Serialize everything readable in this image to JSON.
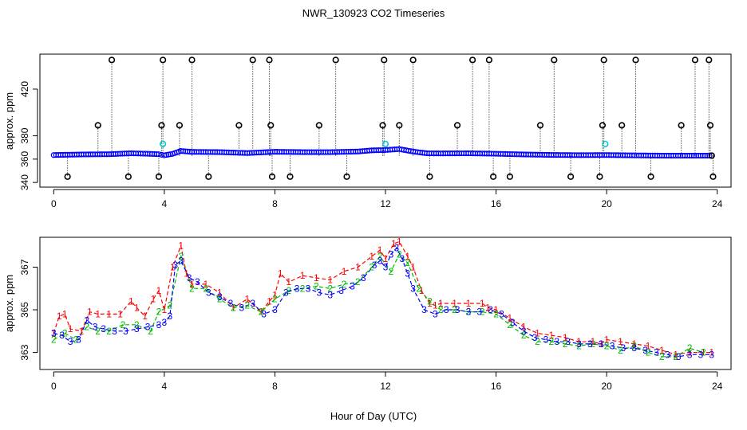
{
  "title": "NWR_130923  CO2 Timeseries",
  "xlabel": "Hour of Day (UTC)",
  "chart_data": [
    {
      "type": "scatter",
      "ylabel": "approx. ppm",
      "xlim": [
        -0.5,
        24.5
      ],
      "ylim": [
        336,
        450
      ],
      "xticks": [
        "0",
        "4",
        "8",
        "12",
        "16",
        "20",
        "24"
      ],
      "yticks": [
        "340",
        "360",
        "380",
        "420"
      ],
      "yticks_values": [
        340,
        360,
        380,
        420
      ],
      "series": [
        {
          "marker": "o",
          "color": "#0000ff",
          "x": [
            0,
            1,
            2,
            2.8,
            3.4,
            3.8,
            4.0,
            4.3,
            4.6,
            5.0,
            6.0,
            7.0,
            8.0,
            9.0,
            10.0,
            11.0,
            11.5,
            12.0,
            12.5,
            13.0,
            13.5,
            14.0,
            15.0,
            16.0,
            17.0,
            18.0,
            19.0,
            20.0,
            21.0,
            22.0,
            23.0,
            23.8
          ],
          "y": [
            363.5,
            364,
            364.2,
            365,
            364.6,
            364.2,
            363.3,
            364.5,
            367,
            366.2,
            366,
            365.2,
            366.3,
            366,
            366,
            366.5,
            367.5,
            367.8,
            368.6,
            366.5,
            365,
            364.9,
            365,
            364.6,
            364,
            363.6,
            363.4,
            363.5,
            363.2,
            363,
            363,
            363
          ]
        },
        {
          "marker": "o",
          "color": "#00cccc",
          "x": [
            3.95,
            12.0,
            19.95
          ],
          "y": [
            373,
            373,
            373
          ]
        },
        {
          "marker": "o",
          "color": "#000000",
          "x": [
            0.5,
            1.6,
            2.1,
            2.7,
            3.8,
            3.9,
            3.95,
            4.55,
            5.0,
            5.6,
            6.7,
            7.2,
            7.8,
            7.85,
            7.9,
            8.55,
            9.6,
            10.2,
            10.6,
            11.9,
            11.95,
            12.5,
            13.0,
            13.6,
            14.6,
            15.15,
            15.75,
            15.9,
            16.5,
            17.6,
            18.1,
            18.7,
            19.75,
            19.85,
            19.9,
            20.55,
            21.05,
            21.6,
            22.7,
            23.2,
            23.7,
            23.75,
            23.8,
            23.85
          ],
          "y": [
            345,
            389,
            445,
            345,
            345,
            389,
            445,
            389,
            445,
            345,
            389,
            445,
            445,
            389,
            345,
            345,
            389,
            445,
            345,
            389,
            445,
            389,
            445,
            345,
            389,
            445,
            445,
            345,
            345,
            389,
            445,
            345,
            345,
            389,
            445,
            389,
            445,
            345,
            389,
            445,
            445,
            389,
            363,
            345
          ]
        }
      ]
    },
    {
      "type": "line",
      "ylabel": "approx. ppm",
      "xlim": [
        -0.5,
        24.5
      ],
      "ylim": [
        362.2,
        368.4
      ],
      "xticks": [
        "0",
        "4",
        "8",
        "12",
        "16",
        "20",
        "24"
      ],
      "yticks": [
        "363",
        "365",
        "367"
      ],
      "yticks_values": [
        363,
        365,
        367
      ],
      "series": [
        {
          "marker": "1",
          "color": "#ff0000",
          "x": [
            0,
            0.2,
            0.4,
            0.6,
            1.0,
            1.3,
            1.6,
            2.0,
            2.4,
            2.8,
            3.0,
            3.3,
            3.6,
            3.8,
            4.0,
            4.3,
            4.6,
            4.8,
            5.0,
            5.5,
            6.0,
            6.5,
            7.0,
            7.5,
            7.8,
            8.0,
            8.2,
            8.5,
            9.0,
            9.5,
            10.0,
            10.5,
            11.0,
            11.5,
            11.8,
            12.0,
            12.3,
            12.5,
            12.8,
            13.0,
            13.3,
            13.6,
            13.8,
            14.0,
            14.5,
            15.0,
            15.5,
            15.7,
            16.0,
            16.5,
            17.0,
            17.5,
            18.0,
            18.5,
            19.0,
            19.5,
            19.8,
            20.0,
            20.5,
            21.0,
            21.5,
            22.0,
            22.5,
            23.0,
            23.5,
            23.8
          ],
          "y": [
            363.9,
            364.7,
            364.8,
            364.1,
            364.0,
            364.9,
            364.8,
            364.8,
            364.8,
            365.4,
            365.1,
            364.7,
            365.5,
            365.9,
            365.0,
            367.0,
            368.0,
            366.7,
            366.2,
            366.2,
            365.8,
            365.1,
            365.5,
            364.9,
            365.4,
            365.7,
            366.7,
            366.3,
            366.6,
            366.5,
            366.4,
            366.8,
            367.0,
            367.5,
            367.8,
            367.4,
            368.1,
            368.2,
            367.5,
            367.0,
            365.9,
            365.3,
            365.2,
            365.3,
            365.3,
            365.3,
            365.3,
            365.1,
            365.0,
            364.6,
            364.2,
            363.9,
            363.8,
            363.7,
            363.5,
            363.5,
            363.4,
            363.6,
            363.5,
            363.4,
            363.3,
            363.1,
            362.9,
            363.0,
            363.0,
            363.0
          ]
        },
        {
          "marker": "2",
          "color": "#00bb00",
          "x": [
            0,
            0.4,
            0.8,
            1.2,
            1.6,
            2.0,
            2.5,
            3.0,
            3.5,
            3.8,
            4.2,
            4.6,
            5.0,
            5.5,
            6.0,
            6.5,
            7.0,
            7.5,
            8.0,
            8.5,
            9.0,
            9.5,
            10.0,
            10.5,
            11.0,
            11.5,
            11.8,
            12.2,
            12.5,
            12.8,
            13.2,
            13.6,
            14.0,
            14.5,
            15.0,
            15.5,
            16.0,
            16.5,
            17.0,
            17.5,
            18.0,
            18.5,
            19.0,
            19.5,
            20.0,
            20.5,
            21.0,
            21.5,
            22.0,
            22.5,
            23.0,
            23.5
          ],
          "y": [
            363.6,
            363.9,
            363.6,
            364.2,
            364.0,
            364.0,
            364.3,
            364.3,
            364.0,
            364.9,
            365.2,
            367.5,
            366.0,
            366.0,
            365.5,
            365.1,
            365.2,
            364.9,
            365.5,
            365.9,
            366.0,
            366.1,
            366.0,
            366.2,
            366.3,
            367.0,
            367.5,
            366.8,
            367.6,
            367.2,
            366.0,
            365.4,
            365.0,
            365.0,
            364.9,
            364.9,
            364.8,
            364.3,
            363.8,
            363.5,
            363.5,
            363.4,
            363.3,
            363.4,
            363.3,
            363.1,
            363.3,
            363.0,
            362.8,
            362.8,
            363.2,
            363.0
          ]
        },
        {
          "marker": "3",
          "color": "#0000ff",
          "x": [
            0,
            0.3,
            0.6,
            0.9,
            1.2,
            1.5,
            1.8,
            2.2,
            2.6,
            3.0,
            3.4,
            3.8,
            4.0,
            4.2,
            4.4,
            4.6,
            4.9,
            5.2,
            5.6,
            6.0,
            6.4,
            6.8,
            7.2,
            7.6,
            8.0,
            8.4,
            8.8,
            9.2,
            9.6,
            10.0,
            10.4,
            10.8,
            11.2,
            11.6,
            11.8,
            12.0,
            12.2,
            12.4,
            12.6,
            12.8,
            13.0,
            13.4,
            13.8,
            14.2,
            14.6,
            15.0,
            15.4,
            15.8,
            16.2,
            16.6,
            17.0,
            17.4,
            17.8,
            18.2,
            18.6,
            19.0,
            19.4,
            19.8,
            20.2,
            20.6,
            21.0,
            21.4,
            21.8,
            22.2,
            22.6,
            23.0,
            23.4,
            23.8
          ],
          "y": [
            363.9,
            363.8,
            363.5,
            363.6,
            364.5,
            364.2,
            364.1,
            364.0,
            364.0,
            364.1,
            364.2,
            364.3,
            364.4,
            364.7,
            367.1,
            367.3,
            366.5,
            366.3,
            365.8,
            365.6,
            365.3,
            365.1,
            365.3,
            364.8,
            365.0,
            365.8,
            366.0,
            366.0,
            365.8,
            365.7,
            365.9,
            366.1,
            366.5,
            367.1,
            367.3,
            367.0,
            367.6,
            367.9,
            367.4,
            366.7,
            366.0,
            365.0,
            364.8,
            365.0,
            365.0,
            364.9,
            364.9,
            365.0,
            364.8,
            364.4,
            364.0,
            363.7,
            363.6,
            363.5,
            363.5,
            363.4,
            363.4,
            363.4,
            363.3,
            363.2,
            363.2,
            363.1,
            363.0,
            362.9,
            362.8,
            362.9,
            362.9,
            362.9
          ]
        }
      ]
    }
  ]
}
